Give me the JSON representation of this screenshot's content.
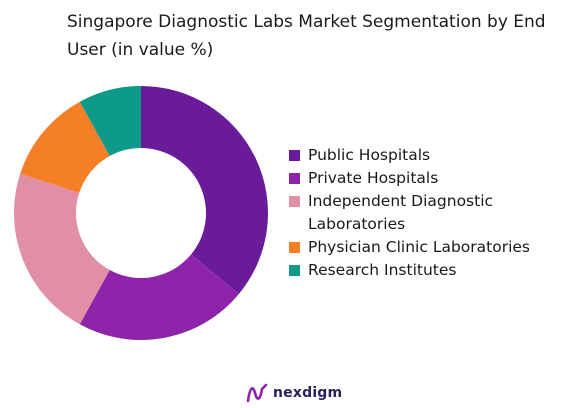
{
  "chart_data": {
    "type": "pie",
    "variant": "donut",
    "title": "Singapore Diagnostic Labs Market Segmentation by End User (in value %)",
    "categories": [
      "Public Hospitals",
      "Private Hospitals",
      "Independent Diagnostic Laboratories",
      "Physician Clinic Laboratories",
      "Research Institutes"
    ],
    "values": [
      36,
      22,
      22,
      12,
      8
    ],
    "unit": "%",
    "colors": [
      "#6a1b9a",
      "#8e24aa",
      "#e08fa4",
      "#f47f26",
      "#0e9a8a"
    ],
    "legend_position": "right"
  },
  "brand": {
    "name": "nexdigm",
    "logo_icon": "nexdigm-logo-icon",
    "logo_color": "#8e24aa",
    "text_color": "#2b1f5c"
  }
}
